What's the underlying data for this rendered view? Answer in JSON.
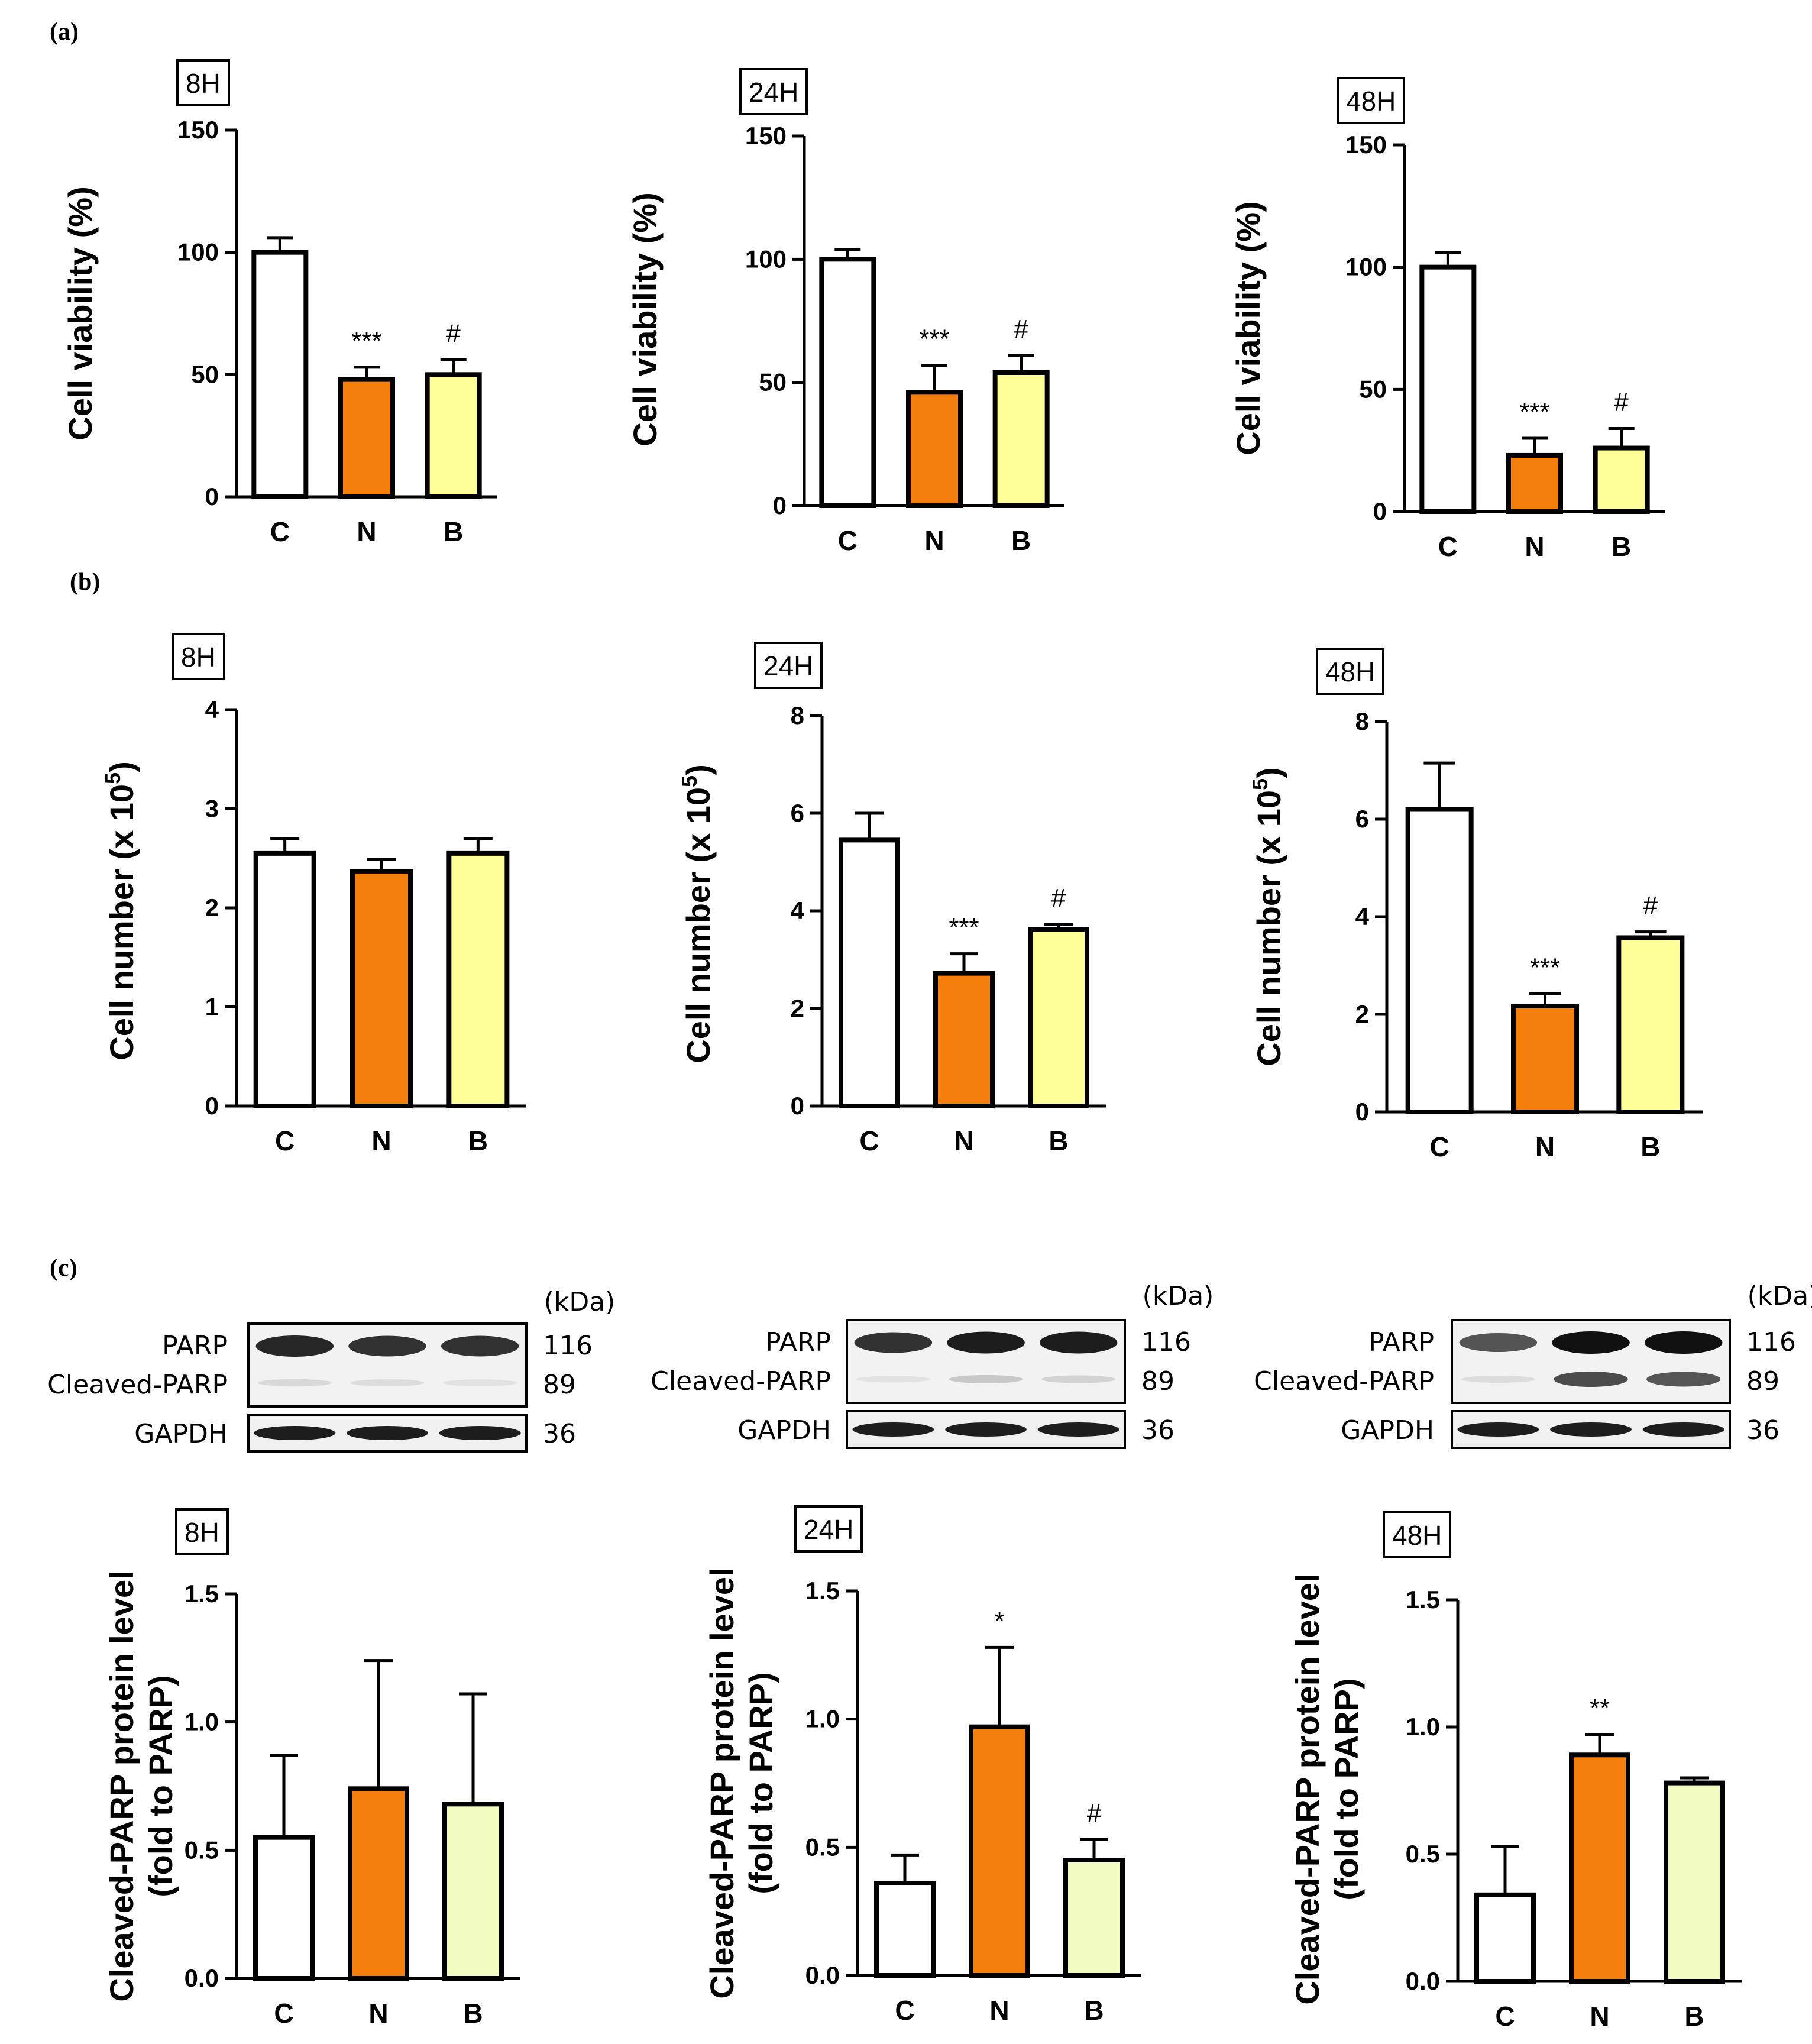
{
  "panel_labels": [
    "(a)",
    "(b)",
    "(c)"
  ],
  "colors": {
    "control": "#ffffff",
    "N": "#f57f0c",
    "B_viability": "#ffff99",
    "B_parp": "#f3fcc0",
    "axis": "#000000"
  },
  "blots": [
    {
      "kda_label": "(kDa)",
      "rows": [
        {
          "label": "PARP",
          "kda": "116"
        },
        {
          "label": "Cleaved-PARP",
          "kda": "89"
        },
        {
          "label": "GAPDH",
          "kda": "36"
        }
      ]
    },
    {
      "kda_label": "(kDa)",
      "rows": [
        {
          "label": "PARP",
          "kda": "116"
        },
        {
          "label": "Cleaved-PARP",
          "kda": "89"
        },
        {
          "label": "GAPDH",
          "kda": "36"
        }
      ]
    },
    {
      "kda_label": "(kDa)",
      "rows": [
        {
          "label": "PARP",
          "kda": "116"
        },
        {
          "label": "Cleaved-PARP",
          "kda": "89"
        },
        {
          "label": "GAPDH",
          "kda": "36"
        }
      ]
    }
  ],
  "chart_data": [
    {
      "type": "bar",
      "panel": "a",
      "title": "8H",
      "ylabel": "Cell viability (%)",
      "ylim": [
        0,
        150
      ],
      "yticks": [
        "0",
        "50",
        "100",
        "150"
      ],
      "categories": [
        "C",
        "N",
        "B"
      ],
      "values": [
        100,
        48,
        50
      ],
      "errors": [
        6,
        5,
        6
      ],
      "significance": [
        "",
        "***",
        "#"
      ]
    },
    {
      "type": "bar",
      "panel": "a",
      "title": "24H",
      "ylabel": "Cell viability (%)",
      "ylim": [
        0,
        150
      ],
      "yticks": [
        "0",
        "50",
        "100",
        "150"
      ],
      "categories": [
        "C",
        "N",
        "B"
      ],
      "values": [
        100,
        46,
        54
      ],
      "errors": [
        4,
        11,
        7
      ],
      "significance": [
        "",
        "***",
        "#"
      ]
    },
    {
      "type": "bar",
      "panel": "a",
      "title": "48H",
      "ylabel": "Cell viability (%)",
      "ylim": [
        0,
        150
      ],
      "yticks": [
        "0",
        "50",
        "100",
        "150"
      ],
      "categories": [
        "C",
        "N",
        "B"
      ],
      "values": [
        100,
        23,
        26
      ],
      "errors": [
        6,
        7,
        8
      ],
      "significance": [
        "",
        "***",
        "#"
      ]
    },
    {
      "type": "bar",
      "panel": "b",
      "title": "8H",
      "ylabel": "Cell number (x 10",
      "ylabel_sup": "5",
      "ylabel_end": ")",
      "ylim": [
        0,
        4
      ],
      "yticks": [
        "0",
        "1",
        "2",
        "3",
        "4"
      ],
      "categories": [
        "C",
        "N",
        "B"
      ],
      "values": [
        2.55,
        2.37,
        2.55
      ],
      "errors": [
        0.15,
        0.12,
        0.15
      ],
      "significance": [
        "",
        "",
        ""
      ]
    },
    {
      "type": "bar",
      "panel": "b",
      "title": "24H",
      "ylabel": "Cell number (x 10",
      "ylabel_sup": "5",
      "ylabel_end": ")",
      "ylim": [
        0,
        8
      ],
      "yticks": [
        "0",
        "2",
        "4",
        "6",
        "8"
      ],
      "categories": [
        "C",
        "N",
        "B"
      ],
      "values": [
        5.45,
        2.72,
        3.62
      ],
      "errors": [
        0.55,
        0.4,
        0.1
      ],
      "significance": [
        "",
        "***",
        "#"
      ]
    },
    {
      "type": "bar",
      "panel": "b",
      "title": "48H",
      "ylabel": "Cell number (x 10",
      "ylabel_sup": "5",
      "ylabel_end": ")",
      "ylim": [
        0,
        8
      ],
      "yticks": [
        "0",
        "2",
        "4",
        "6",
        "8"
      ],
      "categories": [
        "C",
        "N",
        "B"
      ],
      "values": [
        6.2,
        2.17,
        3.57
      ],
      "errors": [
        0.95,
        0.25,
        0.12
      ],
      "significance": [
        "",
        "***",
        "#"
      ]
    },
    {
      "type": "bar",
      "panel": "c",
      "title": "8H",
      "ylabel": "Cleaved-PARP protein level",
      "ylabel2": "(fold to PARP)",
      "ylim": [
        0,
        1.5
      ],
      "yticks": [
        "0.0",
        "0.5",
        "1.0",
        "1.5"
      ],
      "categories": [
        "C",
        "N",
        "B"
      ],
      "values": [
        0.55,
        0.74,
        0.68
      ],
      "errors": [
        0.32,
        0.5,
        0.43
      ],
      "significance": [
        "",
        "",
        ""
      ]
    },
    {
      "type": "bar",
      "panel": "c",
      "title": "24H",
      "ylabel": "Cleaved-PARP protein level",
      "ylabel2": "(fold to PARP)",
      "ylim": [
        0,
        1.5
      ],
      "yticks": [
        "0.0",
        "0.5",
        "1.0",
        "1.5"
      ],
      "categories": [
        "C",
        "N",
        "B"
      ],
      "values": [
        0.36,
        0.97,
        0.45
      ],
      "errors": [
        0.11,
        0.31,
        0.08
      ],
      "significance": [
        "",
        "*",
        "#"
      ]
    },
    {
      "type": "bar",
      "panel": "c",
      "title": "48H",
      "ylabel": "Cleaved-PARP protein level",
      "ylabel2": "(fold to PARP)",
      "ylim": [
        0,
        1.5
      ],
      "yticks": [
        "0.0",
        "0.5",
        "1.0",
        "1.5"
      ],
      "categories": [
        "C",
        "N",
        "B"
      ],
      "values": [
        0.34,
        0.89,
        0.78
      ],
      "errors": [
        0.19,
        0.08,
        0.02
      ],
      "significance": [
        "",
        "**",
        ""
      ]
    }
  ]
}
